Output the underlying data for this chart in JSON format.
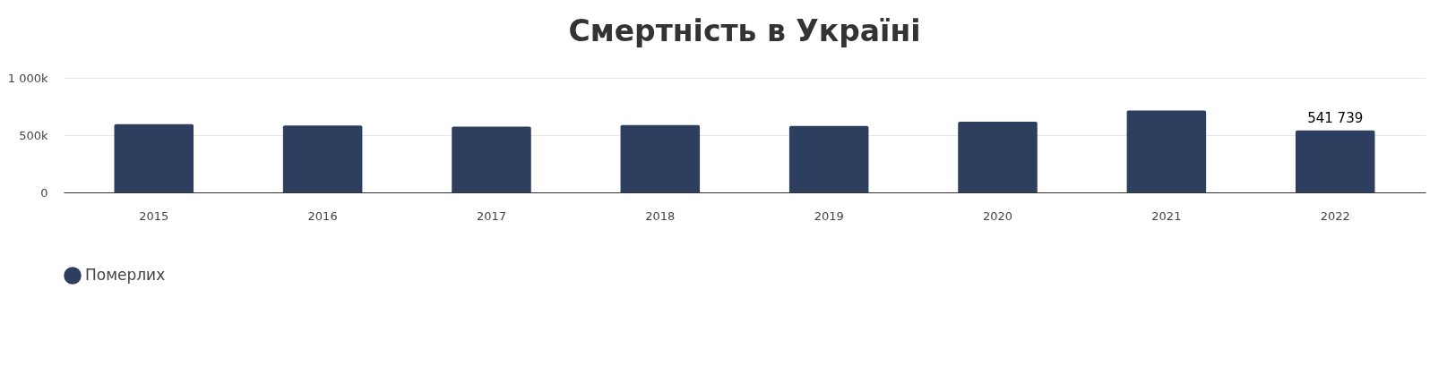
{
  "chart_data": {
    "type": "bar",
    "title": "Смертність в Україні",
    "categories": [
      "2015",
      "2016",
      "2017",
      "2018",
      "2019",
      "2020",
      "2021",
      "2022"
    ],
    "series": [
      {
        "name": "Померлих",
        "color": "#2e3e5f",
        "values": [
          595000,
          584000,
          574000,
          588000,
          581000,
          617000,
          714000,
          541739
        ],
        "value_labels": [
          null,
          null,
          null,
          null,
          null,
          null,
          null,
          "541 739"
        ]
      }
    ],
    "ylim": [
      0,
      1000000
    ],
    "yticks": [
      0,
      {
        "value": 500000,
        "label": "500k"
      },
      {
        "value": 1000000,
        "label": "1 000k"
      }
    ],
    "grid": "y",
    "legend": "bottom"
  }
}
